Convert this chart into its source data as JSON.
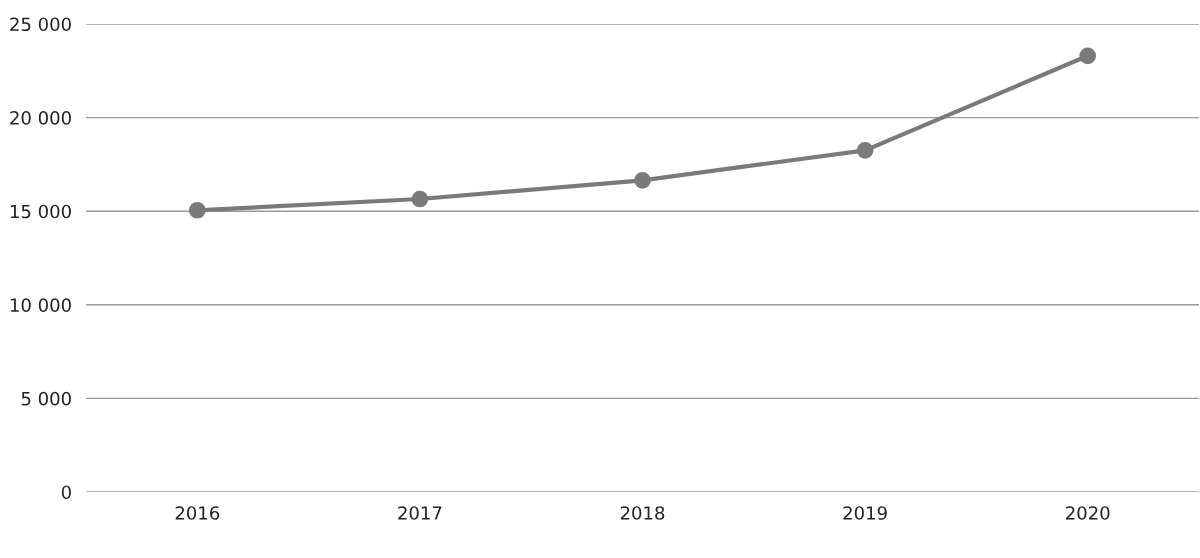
{
  "chart_data": {
    "type": "line",
    "categories": [
      "2016",
      "2017",
      "2018",
      "2019",
      "2020"
    ],
    "series": [
      {
        "color": "#7a7a7a",
        "values": [
          15050,
          15650,
          16650,
          18250,
          23300
        ]
      }
    ],
    "ylim": [
      0,
      25000
    ],
    "yticks": [
      {
        "value": 0,
        "label": "0"
      },
      {
        "value": 5000,
        "label": "5 000"
      },
      {
        "value": 10000,
        "label": "10 000"
      },
      {
        "value": 15000,
        "label": "15 000"
      },
      {
        "value": 20000,
        "label": "20 000"
      },
      {
        "value": 25000,
        "label": "25 000"
      }
    ],
    "grid": "y",
    "marker": "circle",
    "line_style": "solid"
  }
}
